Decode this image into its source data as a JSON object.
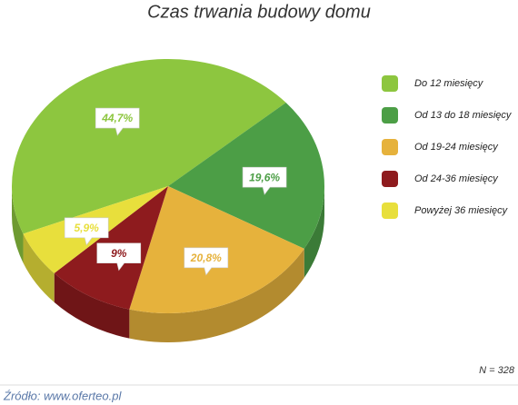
{
  "chart_data": {
    "type": "pie",
    "title": "Czas trwania budowy domu",
    "categories": [
      "Do 12 miesięcy",
      "Od 13 do 18 miesięcy",
      "Od 19-24 miesięcy",
      "Od 24-36 miesięcy",
      "Powyżej 36 miesięcy"
    ],
    "values": [
      44.7,
      19.6,
      20.8,
      9,
      5.9
    ],
    "value_labels": [
      "44,7%",
      "19,6%",
      "20,8%",
      "9%",
      "5,9%"
    ],
    "colors": [
      "#8dc63f",
      "#4c9e46",
      "#e6b23c",
      "#8e1b1e",
      "#e8df3c"
    ],
    "legend": "right",
    "note": "N = 328",
    "source": "Źródło: www.oferteo.pl"
  }
}
